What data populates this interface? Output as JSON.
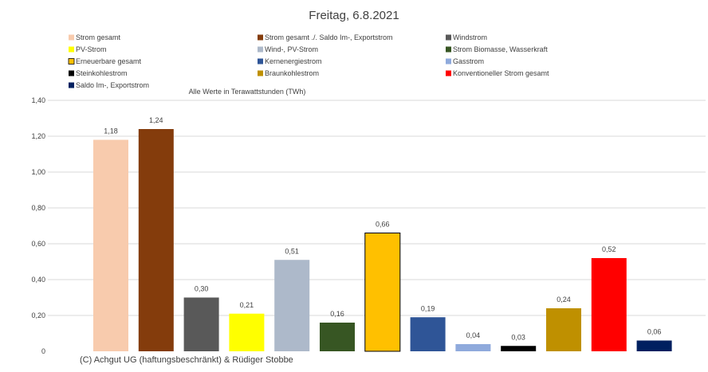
{
  "chart_data": {
    "type": "bar",
    "title": "Freitag, 6.8.2021",
    "note": "Alle Werte in Terawattstunden (TWh)",
    "ylim": [
      0,
      1.4
    ],
    "yticks": [
      "0",
      "0,20",
      "0,40",
      "0,60",
      "0,80",
      "1,00",
      "1,20",
      "1,40"
    ],
    "grid": true,
    "legend_position": "top",
    "categories": [
      "Strom gesamt",
      "Strom gesamt ./. Saldo Im-, Exportstrom",
      "Windstrom",
      "PV-Strom",
      "Wind-, PV-Strom",
      "Strom Biomasse, Wasserkraft",
      "Erneuerbare gesamt",
      "Kernenergiestrom",
      "Gasstrom",
      "Steinkohlestrom",
      "Braunkohlestrom",
      "Konventioneller Strom gesamt",
      "Saldo Im-, Exportstrom"
    ],
    "values": [
      1.18,
      1.24,
      0.3,
      0.21,
      0.51,
      0.16,
      0.66,
      0.19,
      0.04,
      0.03,
      0.24,
      0.52,
      0.06
    ],
    "labels": [
      "1,18",
      "1,24",
      "0,30",
      "0,21",
      "0,51",
      "0,16",
      "0,66",
      "0,19",
      "0,04",
      "0,03",
      "0,24",
      "0,52",
      "0,06"
    ],
    "colors": [
      "#f8cbad",
      "#843c0c",
      "#595959",
      "#ffff00",
      "#adb9ca",
      "#375623",
      "#ffc000",
      "#2f5597",
      "#8faadc",
      "#000000",
      "#bf9000",
      "#ff0000",
      "#002060"
    ]
  },
  "footer": {
    "credit": "(C) Achgut UG (haftungsbeschränkt) & Rüdiger Stobbe"
  }
}
